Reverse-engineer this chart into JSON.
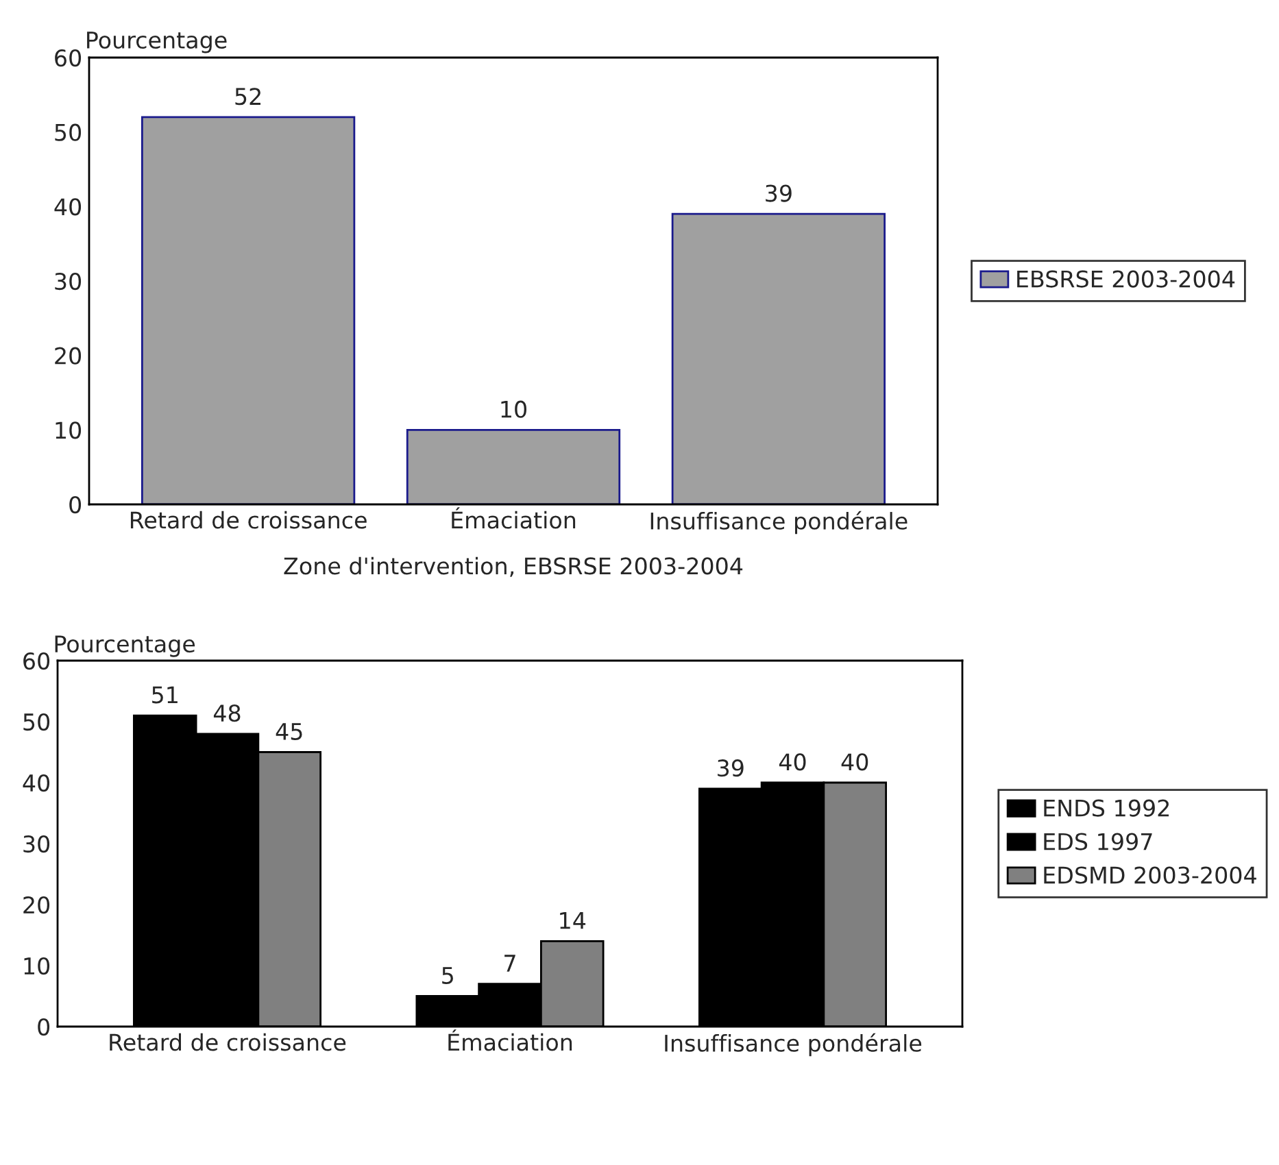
{
  "chart_data": [
    {
      "type": "bar",
      "ylabel": "Pourcentage",
      "xlabel": "Zone d'intervention, EBSRSE 2003-2004",
      "categories": [
        "Retard de croissance",
        "Émaciation",
        "Insuffisance pondérale"
      ],
      "series": [
        {
          "name": "EBSRSE 2003-2004",
          "color": "#a0a0a0",
          "values": [
            52,
            10,
            39
          ]
        }
      ],
      "ylim": [
        0,
        60
      ],
      "yticks": [
        0,
        10,
        20,
        30,
        40,
        50,
        60
      ],
      "data_labels": true,
      "legend": "right",
      "grid": false
    },
    {
      "type": "bar",
      "ylabel": "Pourcentage",
      "categories": [
        "Retard de croissance",
        "Émaciation",
        "Insuffisance pondérale"
      ],
      "series": [
        {
          "name": "ENDS 1992",
          "color": "#000000",
          "values": [
            51,
            5,
            39
          ]
        },
        {
          "name": "EDS 1997",
          "color": "#000000",
          "values": [
            48,
            7,
            40
          ]
        },
        {
          "name": "EDSMD 2003-2004",
          "color": "#808080",
          "values": [
            45,
            14,
            40
          ]
        }
      ],
      "ylim": [
        0,
        60
      ],
      "yticks": [
        0,
        10,
        20,
        30,
        40,
        50,
        60
      ],
      "data_labels": true,
      "legend": "right",
      "grid": false
    }
  ]
}
